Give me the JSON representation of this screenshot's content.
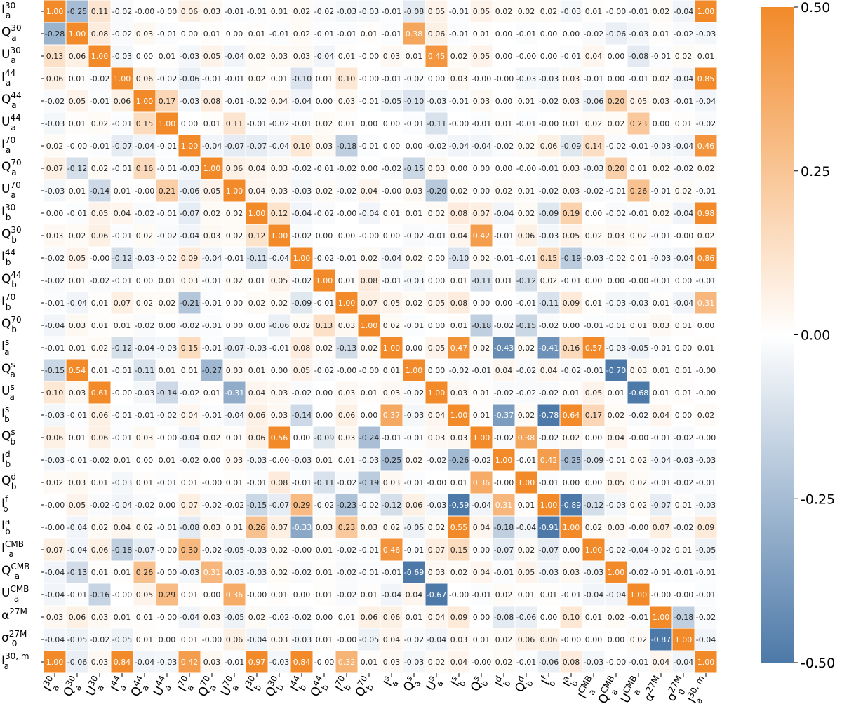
{
  "chart_data": {
    "type": "heatmap",
    "title": "",
    "colormap": {
      "low": "#4d79a8",
      "mid": "#ffffff",
      "high": "#f28a2a"
    },
    "vmin": -0.5,
    "vmax": 0.5,
    "colorbar_ticks": [
      "0.50",
      "0.25",
      "0.00",
      "-0.25",
      "-0.50"
    ],
    "colorbar_tick_values": [
      0.5,
      0.25,
      0.0,
      -0.25,
      -0.5
    ],
    "labels": [
      {
        "base": "I",
        "sub": "a",
        "sup": "30"
      },
      {
        "base": "Q",
        "sub": "a",
        "sup": "30"
      },
      {
        "base": "U",
        "sub": "a",
        "sup": "30"
      },
      {
        "base": "I",
        "sub": "a",
        "sup": "44"
      },
      {
        "base": "Q",
        "sub": "a",
        "sup": "44"
      },
      {
        "base": "U",
        "sub": "a",
        "sup": "44"
      },
      {
        "base": "I",
        "sub": "a",
        "sup": "70"
      },
      {
        "base": "Q",
        "sub": "a",
        "sup": "70"
      },
      {
        "base": "U",
        "sub": "a",
        "sup": "70"
      },
      {
        "base": "I",
        "sub": "b",
        "sup": "30"
      },
      {
        "base": "Q",
        "sub": "b",
        "sup": "30"
      },
      {
        "base": "I",
        "sub": "b",
        "sup": "44"
      },
      {
        "base": "Q",
        "sub": "b",
        "sup": "44"
      },
      {
        "base": "I",
        "sub": "b",
        "sup": "70"
      },
      {
        "base": "Q",
        "sub": "b",
        "sup": "70"
      },
      {
        "base": "I",
        "sub": "a",
        "sup": "s"
      },
      {
        "base": "Q",
        "sub": "a",
        "sup": "s"
      },
      {
        "base": "U",
        "sub": "a",
        "sup": "s"
      },
      {
        "base": "I",
        "sub": "b",
        "sup": "s"
      },
      {
        "base": "Q",
        "sub": "b",
        "sup": "s"
      },
      {
        "base": "I",
        "sub": "b",
        "sup": "d"
      },
      {
        "base": "Q",
        "sub": "b",
        "sup": "d"
      },
      {
        "base": "I",
        "sub": "b",
        "sup": "f"
      },
      {
        "base": "I",
        "sub": "b",
        "sup": "a"
      },
      {
        "base": "I",
        "sub": "a",
        "sup": "CMB"
      },
      {
        "base": "Q",
        "sub": "a",
        "sup": "CMB"
      },
      {
        "base": "U",
        "sub": "a",
        "sup": "CMB"
      },
      {
        "base": "α",
        "sub": "",
        "sup": "27M"
      },
      {
        "base": "σ",
        "sub": "0",
        "sup": "27M"
      },
      {
        "base": "I",
        "sub": "a",
        "sup": "30, m"
      }
    ],
    "values": [
      [
        "1.00",
        "-0.25",
        "0.11",
        "-0.02",
        "-0.00",
        "-0.00",
        "0.06",
        "0.03",
        "-0.01",
        "-0.01",
        "0.01",
        "0.02",
        "-0.02",
        "-0.03",
        "-0.03",
        "-0.01",
        "-0.08",
        "0.05",
        "-0.01",
        "0.05",
        "0.02",
        "0.02",
        "0.02",
        "-0.03",
        "0.01",
        "-0.00",
        "-0.01",
        "0.02",
        "-0.04",
        "1.00"
      ],
      [
        "-0.28",
        "1.00",
        "0.08",
        "-0.02",
        "0.03",
        "-0.01",
        "0.00",
        "0.01",
        "0.00",
        "0.01",
        "-0.01",
        "0.02",
        "-0.01",
        "-0.01",
        "0.01",
        "-0.01",
        "0.38",
        "0.06",
        "-0.01",
        "0.01",
        "0.00",
        "-0.01",
        "0.00",
        "0.00",
        "-0.02",
        "-0.06",
        "-0.03",
        "0.01",
        "-0.02",
        "-0.03"
      ],
      [
        "0.13",
        "0.06",
        "1.00",
        "-0.03",
        "0.00",
        "0.01",
        "-0.03",
        "0.05",
        "-0.04",
        "0.02",
        "0.03",
        "0.03",
        "-0.04",
        "0.01",
        "-0.00",
        "0.03",
        "0.01",
        "0.45",
        "0.02",
        "0.05",
        "0.00",
        "-0.00",
        "0.00",
        "-0.01",
        "0.04",
        "0.00",
        "-0.08",
        "-0.01",
        "0.02",
        "0.01"
      ],
      [
        "0.06",
        "0.01",
        "-0.02",
        "1.00",
        "0.06",
        "-0.02",
        "-0.06",
        "-0.01",
        "-0.01",
        "0.02",
        "0.01",
        "-0.10",
        "0.01",
        "0.10",
        "-0.00",
        "-0.01",
        "-0.02",
        "0.00",
        "0.03",
        "-0.00",
        "-0.00",
        "-0.03",
        "-0.03",
        "0.03",
        "-0.01",
        "0.00",
        "-0.01",
        "0.02",
        "-0.04",
        "0.85"
      ],
      [
        "-0.02",
        "0.05",
        "-0.01",
        "0.06",
        "1.00",
        "0.17",
        "-0.03",
        "0.08",
        "-0.01",
        "-0.02",
        "0.04",
        "-0.04",
        "0.00",
        "0.03",
        "-0.01",
        "-0.05",
        "-0.10",
        "-0.03",
        "-0.01",
        "0.03",
        "0.00",
        "0.01",
        "-0.02",
        "0.03",
        "-0.06",
        "0.20",
        "0.05",
        "0.03",
        "-0.01",
        "-0.04"
      ],
      [
        "-0.03",
        "0.01",
        "0.02",
        "-0.01",
        "0.15",
        "1.00",
        "0.00",
        "0.01",
        "0.11",
        "-0.01",
        "-0.02",
        "-0.01",
        "0.02",
        "0.01",
        "0.00",
        "0.00",
        "-0.01",
        "-0.11",
        "-0.00",
        "-0.01",
        "0.01",
        "-0.01",
        "-0.00",
        "0.01",
        "0.02",
        "0.02",
        "0.23",
        "0.00",
        "0.01",
        "-0.02"
      ],
      [
        "0.02",
        "-0.00",
        "-0.01",
        "-0.07",
        "-0.04",
        "-0.01",
        "1.00",
        "-0.04",
        "-0.07",
        "-0.07",
        "-0.04",
        "0.10",
        "0.03",
        "-0.18",
        "-0.01",
        "0.00",
        "0.00",
        "-0.02",
        "-0.04",
        "-0.04",
        "-0.02",
        "0.02",
        "0.06",
        "-0.09",
        "0.14",
        "-0.02",
        "-0.01",
        "-0.03",
        "-0.04",
        "0.46"
      ],
      [
        "0.07",
        "-0.12",
        "0.02",
        "-0.01",
        "0.16",
        "-0.01",
        "-0.03",
        "1.00",
        "0.06",
        "0.04",
        "0.03",
        "-0.02",
        "-0.01",
        "-0.02",
        "0.00",
        "-0.02",
        "-0.15",
        "0.03",
        "0.00",
        "0.00",
        "0.00",
        "-0.00",
        "-0.01",
        "0.03",
        "-0.03",
        "0.20",
        "0.01",
        "0.02",
        "-0.02",
        "0.02"
      ],
      [
        "-0.03",
        "0.01",
        "-0.14",
        "0.01",
        "-0.00",
        "0.21",
        "-0.06",
        "0.05",
        "1.00",
        "0.04",
        "0.03",
        "-0.03",
        "0.02",
        "-0.02",
        "0.04",
        "-0.00",
        "0.03",
        "-0.20",
        "0.02",
        "0.00",
        "0.02",
        "0.01",
        "-0.02",
        "0.03",
        "-0.02",
        "-0.01",
        "0.26",
        "-0.01",
        "0.02",
        "-0.01"
      ],
      [
        "0.00",
        "-0.01",
        "0.05",
        "0.04",
        "-0.02",
        "-0.01",
        "-0.07",
        "0.02",
        "0.02",
        "1.00",
        "0.12",
        "-0.04",
        "-0.02",
        "-0.00",
        "-0.04",
        "0.01",
        "0.01",
        "0.02",
        "0.08",
        "0.07",
        "-0.04",
        "0.02",
        "-0.09",
        "0.19",
        "0.00",
        "-0.02",
        "-0.01",
        "0.02",
        "-0.04",
        "0.98"
      ],
      [
        "0.03",
        "0.02",
        "0.06",
        "-0.01",
        "0.02",
        "-0.02",
        "-0.04",
        "0.03",
        "0.02",
        "0.12",
        "1.00",
        "-0.02",
        "0.00",
        "0.00",
        "-0.00",
        "0.00",
        "-0.02",
        "-0.01",
        "0.04",
        "0.42",
        "-0.01",
        "0.06",
        "-0.03",
        "0.05",
        "0.02",
        "0.03",
        "0.02",
        "-0.01",
        "-0.00",
        "0.02"
      ],
      [
        "-0.02",
        "0.05",
        "-0.00",
        "-0.12",
        "-0.03",
        "-0.02",
        "0.09",
        "-0.04",
        "-0.01",
        "-0.11",
        "-0.04",
        "1.00",
        "-0.02",
        "-0.01",
        "0.02",
        "-0.04",
        "0.02",
        "0.00",
        "-0.10",
        "0.02",
        "-0.01",
        "-0.01",
        "0.15",
        "-0.19",
        "-0.03",
        "-0.02",
        "0.01",
        "-0.03",
        "-0.04",
        "0.86"
      ],
      [
        "-0.02",
        "0.01",
        "-0.02",
        "-0.01",
        "0.00",
        "0.01",
        "0.03",
        "-0.01",
        "0.02",
        "0.01",
        "0.05",
        "-0.02",
        "1.00",
        "0.01",
        "0.08",
        "-0.01",
        "-0.03",
        "0.00",
        "0.01",
        "-0.11",
        "0.01",
        "-0.12",
        "0.02",
        "-0.01",
        "0.00",
        "0.00",
        "-0.00",
        "-0.01",
        "0.00",
        "-0.01"
      ],
      [
        "-0.01",
        "-0.04",
        "0.01",
        "0.07",
        "0.02",
        "0.02",
        "-0.21",
        "-0.01",
        "0.00",
        "0.02",
        "0.02",
        "-0.09",
        "-0.01",
        "1.00",
        "0.07",
        "0.05",
        "0.02",
        "0.05",
        "0.08",
        "0.00",
        "0.00",
        "-0.01",
        "-0.11",
        "0.09",
        "0.01",
        "-0.03",
        "-0.03",
        "0.01",
        "-0.04",
        "0.31"
      ],
      [
        "-0.04",
        "0.03",
        "0.01",
        "0.01",
        "-0.02",
        "0.00",
        "-0.02",
        "-0.01",
        "0.00",
        "0.00",
        "-0.06",
        "0.02",
        "0.13",
        "0.03",
        "1.00",
        "0.02",
        "-0.01",
        "0.00",
        "0.01",
        "-0.18",
        "-0.02",
        "-0.15",
        "-0.02",
        "0.00",
        "-0.01",
        "-0.01",
        "0.01",
        "0.03",
        "0.01",
        "0.00"
      ],
      [
        "-0.01",
        "0.01",
        "0.02",
        "-0.12",
        "-0.04",
        "-0.03",
        "0.15",
        "-0.01",
        "-0.07",
        "-0.03",
        "-0.01",
        "0.08",
        "0.02",
        "-0.13",
        "0.02",
        "1.00",
        "0.00",
        "0.05",
        "0.47",
        "0.02",
        "-0.43",
        "0.02",
        "-0.41",
        "0.16",
        "0.57",
        "-0.03",
        "-0.05",
        "-0.01",
        "0.00",
        "0.01"
      ],
      [
        "-0.15",
        "0.54",
        "0.01",
        "-0.01",
        "-0.11",
        "0.01",
        "0.01",
        "-0.27",
        "0.03",
        "0.01",
        "0.00",
        "0.05",
        "-0.02",
        "-0.00",
        "-0.00",
        "0.01",
        "1.00",
        "0.00",
        "-0.02",
        "-0.01",
        "0.04",
        "-0.02",
        "0.04",
        "-0.02",
        "-0.01",
        "-0.70",
        "0.03",
        "0.01",
        "0.01",
        "-0.00"
      ],
      [
        "0.10",
        "0.03",
        "0.61",
        "-0.00",
        "-0.03",
        "-0.14",
        "-0.02",
        "0.01",
        "-0.31",
        "0.04",
        "0.03",
        "-0.02",
        "0.00",
        "0.03",
        "0.01",
        "0.03",
        "-0.02",
        "1.00",
        "0.03",
        "0.01",
        "-0.02",
        "-0.02",
        "-0.02",
        "0.01",
        "0.05",
        "0.01",
        "-0.68",
        "0.01",
        "0.01",
        "-0.00"
      ],
      [
        "-0.03",
        "-0.01",
        "0.06",
        "-0.01",
        "-0.01",
        "-0.02",
        "0.04",
        "-0.01",
        "-0.04",
        "0.06",
        "0.03",
        "-0.14",
        "0.00",
        "0.06",
        "0.00",
        "0.37",
        "-0.03",
        "0.04",
        "1.00",
        "0.01",
        "-0.37",
        "0.02",
        "-0.78",
        "0.64",
        "0.17",
        "0.02",
        "-0.02",
        "0.04",
        "0.00",
        "0.02"
      ],
      [
        "0.06",
        "0.01",
        "0.06",
        "-0.01",
        "0.03",
        "-0.00",
        "-0.04",
        "0.02",
        "0.01",
        "0.06",
        "0.56",
        "0.00",
        "-0.09",
        "0.03",
        "-0.24",
        "-0.01",
        "-0.01",
        "0.03",
        "0.03",
        "1.00",
        "-0.02",
        "0.38",
        "-0.02",
        "0.02",
        "0.00",
        "0.04",
        "-0.00",
        "-0.01",
        "-0.02",
        "-0.00"
      ],
      [
        "-0.03",
        "-0.01",
        "-0.02",
        "0.01",
        "0.00",
        "0.01",
        "-0.02",
        "0.00",
        "0.03",
        "-0.03",
        "-0.00",
        "-0.03",
        "0.01",
        "0.01",
        "-0.03",
        "-0.25",
        "0.02",
        "-0.02",
        "-0.26",
        "-0.02",
        "1.00",
        "-0.01",
        "0.42",
        "-0.25",
        "-0.09",
        "-0.01",
        "0.02",
        "-0.04",
        "-0.03",
        "-0.03"
      ],
      [
        "0.02",
        "0.03",
        "0.01",
        "-0.03",
        "0.01",
        "-0.01",
        "0.01",
        "-0.00",
        "0.01",
        "-0.01",
        "0.08",
        "-0.01",
        "-0.11",
        "-0.02",
        "-0.19",
        "0.03",
        "-0.01",
        "-0.00",
        "0.01",
        "0.36",
        "-0.00",
        "1.00",
        "-0.01",
        "0.00",
        "0.00",
        "0.05",
        "0.02",
        "-0.01",
        "-0.02",
        "-0.01"
      ],
      [
        "-0.00",
        "0.05",
        "-0.02",
        "-0.04",
        "-0.02",
        "0.00",
        "0.07",
        "-0.02",
        "-0.02",
        "-0.15",
        "-0.07",
        "0.29",
        "-0.02",
        "-0.23",
        "-0.02",
        "-0.12",
        "0.06",
        "-0.03",
        "-0.59",
        "-0.04",
        "0.31",
        "0.01",
        "1.00",
        "-0.89",
        "-0.12",
        "-0.03",
        "0.02",
        "-0.07",
        "0.01",
        "-0.03"
      ],
      [
        "-0.00",
        "-0.04",
        "0.02",
        "0.04",
        "0.02",
        "-0.01",
        "-0.08",
        "0.03",
        "0.01",
        "0.26",
        "0.07",
        "-0.33",
        "0.03",
        "0.23",
        "0.03",
        "0.02",
        "-0.05",
        "0.02",
        "0.55",
        "0.04",
        "-0.18",
        "-0.04",
        "-0.91",
        "1.00",
        "0.02",
        "0.03",
        "-0.00",
        "0.07",
        "-0.02",
        "0.09"
      ],
      [
        "0.07",
        "-0.04",
        "0.06",
        "-0.18",
        "-0.07",
        "-0.00",
        "0.30",
        "-0.02",
        "-0.05",
        "-0.03",
        "0.02",
        "-0.00",
        "0.01",
        "-0.02",
        "-0.01",
        "0.46",
        "-0.01",
        "0.07",
        "0.15",
        "0.00",
        "-0.07",
        "0.02",
        "-0.07",
        "0.00",
        "1.00",
        "-0.02",
        "-0.04",
        "-0.02",
        "0.01",
        "-0.05"
      ],
      [
        "-0.04",
        "-0.13",
        "0.01",
        "0.01",
        "0.26",
        "-0.00",
        "-0.03",
        "0.31",
        "-0.03",
        "-0.03",
        "0.02",
        "-0.02",
        "0.01",
        "-0.02",
        "-0.01",
        "-0.01",
        "-0.69",
        "0.03",
        "0.02",
        "0.04",
        "-0.01",
        "0.05",
        "-0.03",
        "0.03",
        "-0.03",
        "1.00",
        "-0.02",
        "-0.01",
        "-0.01",
        "-0.01"
      ],
      [
        "-0.04",
        "-0.01",
        "-0.16",
        "-0.00",
        "0.05",
        "0.29",
        "0.01",
        "0.00",
        "0.36",
        "-0.00",
        "0.01",
        "0.00",
        "0.01",
        "-0.02",
        "0.01",
        "-0.04",
        "0.04",
        "-0.67",
        "-0.00",
        "-0.01",
        "0.02",
        "0.01",
        "0.01",
        "-0.01",
        "-0.04",
        "-0.04",
        "1.00",
        "-0.00",
        "-0.00",
        "-0.01"
      ],
      [
        "0.03",
        "0.06",
        "0.03",
        "0.01",
        "0.01",
        "-0.00",
        "-0.04",
        "0.03",
        "-0.05",
        "0.02",
        "-0.02",
        "-0.02",
        "0.00",
        "0.01",
        "0.06",
        "0.06",
        "0.01",
        "0.04",
        "0.09",
        "0.00",
        "-0.08",
        "-0.06",
        "0.00",
        "0.10",
        "0.01",
        "0.02",
        "-0.01",
        "1.00",
        "-0.18",
        "-0.02"
      ],
      [
        "-0.04",
        "-0.05",
        "-0.02",
        "-0.05",
        "0.01",
        "0.00",
        "0.01",
        "-0.00",
        "0.06",
        "-0.04",
        "0.03",
        "-0.03",
        "0.01",
        "-0.00",
        "-0.05",
        "0.04",
        "-0.02",
        "-0.04",
        "0.03",
        "0.01",
        "0.02",
        "0.06",
        "0.06",
        "-0.00",
        "0.00",
        "0.00",
        "0.02",
        "-0.87",
        "1.00",
        "-0.04"
      ],
      [
        "1.00",
        "-0.06",
        "0.03",
        "0.84",
        "-0.04",
        "-0.03",
        "0.42",
        "0.03",
        "-0.01",
        "0.97",
        "-0.03",
        "0.84",
        "-0.00",
        "0.32",
        "0.01",
        "0.03",
        "-0.03",
        "0.02",
        "0.04",
        "-0.00",
        "0.02",
        "-0.01",
        "-0.06",
        "0.08",
        "-0.03",
        "-0.00",
        "-0.01",
        "0.04",
        "-0.04",
        "1.00"
      ]
    ]
  }
}
